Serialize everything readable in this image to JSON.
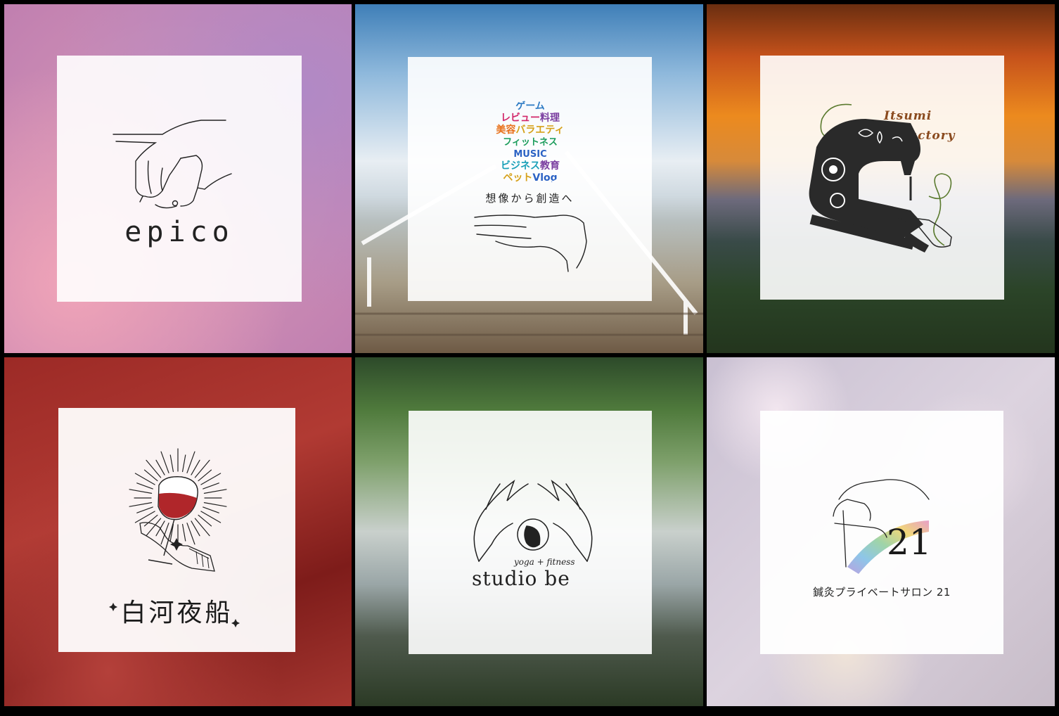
{
  "logos": [
    {
      "brand": "epico"
    },
    {
      "word_ball": [
        "ゲーム",
        "レビュー",
        "料理",
        "美容",
        "バラエティ",
        "フィットネス",
        "MUSIC",
        "ビジネス",
        "教育",
        "ペット",
        "Vlog"
      ],
      "tagline": "想像から創造へ"
    },
    {
      "brand_line1": "Itsumi",
      "brand_line2": "Factory"
    },
    {
      "brand": "白河夜船"
    },
    {
      "subtitle": "yoga + fitness",
      "brand": "studio be"
    },
    {
      "number": "21",
      "brand": "鍼灸プライベートサロン 21"
    }
  ],
  "colors": {
    "wine": "#b0262a",
    "sewing_green": "#5a7a2e",
    "sewing_brown": "#8a4a1e",
    "rainbow": [
      "#e8a0c8",
      "#f0d67a",
      "#9fd4a8",
      "#8ec6e8",
      "#b9a2e0"
    ]
  }
}
